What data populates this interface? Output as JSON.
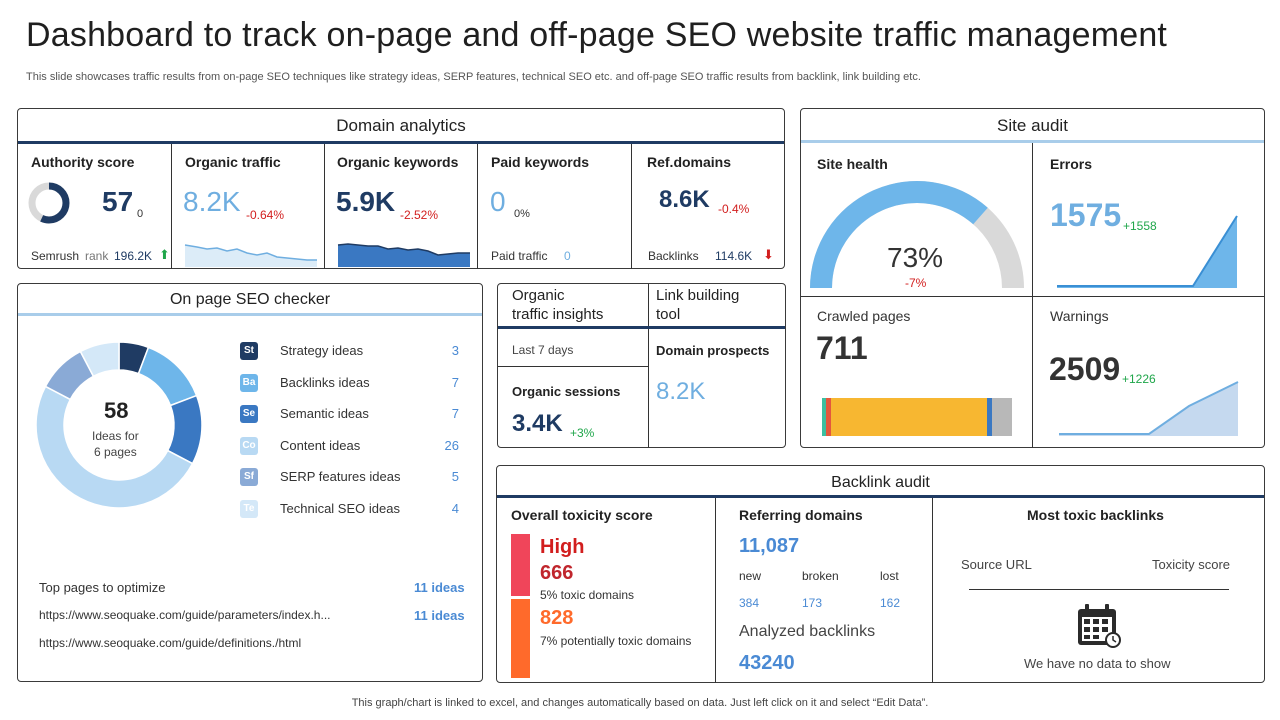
{
  "header": {
    "title": "Dashboard to track on-page and off-page SEO website traffic management",
    "subtitle": "This slide showcases traffic results from on-page SEO techniques like strategy ideas, SERP features, technical SEO etc. and off-page SEO traffic results from backlink, link building etc."
  },
  "domain_analytics": {
    "title": "Domain analytics",
    "authority": {
      "label": "Authority score",
      "value": "57",
      "delta": "0",
      "rank_label": "Semrush",
      "rank_label2": "rank",
      "rank_value": "196.2K",
      "score_fraction": 0.57
    },
    "organic_traffic": {
      "label": "Organic traffic",
      "value": "8.2K",
      "delta": "-0.64%"
    },
    "organic_keywords": {
      "label": "Organic keywords",
      "value": "5.9K",
      "delta": "-2.52%"
    },
    "paid_keywords": {
      "label": "Paid keywords",
      "value": "0",
      "delta": "0%",
      "sub_label": "Paid traffic",
      "sub_value": "0"
    },
    "ref_domains": {
      "label": "Ref.domains",
      "value": "8.6K",
      "delta": "-0.4%",
      "sub_label": "Backlinks",
      "sub_value": "114.6K"
    }
  },
  "site_audit": {
    "title": "Site audit",
    "site_health": {
      "label": "Site health",
      "value": "73%",
      "delta": "-7%",
      "fraction": 0.73
    },
    "errors": {
      "label": "Errors",
      "value": "1575",
      "delta": "+1558"
    },
    "crawled": {
      "label": "Crawled pages",
      "value": "711"
    },
    "warnings": {
      "label": "Warnings",
      "value": "2509",
      "delta": "+1226"
    }
  },
  "on_page": {
    "title": "On page SEO checker",
    "total": "58",
    "total_label1": "Ideas for",
    "total_label2": "6 pages",
    "ideas": [
      {
        "badge": "St",
        "label": "Strategy ideas",
        "value": "3",
        "color": "#1f3b63"
      },
      {
        "badge": "Ba",
        "label": "Backlinks ideas",
        "value": "7",
        "color": "#6eb6ea"
      },
      {
        "badge": "Se",
        "label": "Semantic ideas",
        "value": "7",
        "color": "#3a78c2"
      },
      {
        "badge": "Co",
        "label": "Content ideas",
        "value": "26",
        "color": "#b8d9f3"
      },
      {
        "badge": "Sf",
        "label": "SERP features ideas",
        "value": "5",
        "color": "#8aaad6"
      },
      {
        "badge": "Te",
        "label": "Technical SEO ideas",
        "value": "4",
        "color": "#d4e8f8"
      }
    ],
    "top_pages_label": "Top pages to optimize",
    "top_pages_value": "11 ideas",
    "page1_url": "https://www.seoquake.com/guide/parameters/index.h...",
    "page1_value": "11 ideas",
    "page2_url": "https://www.seoquake.com/guide/definitions./html"
  },
  "organic_insights": {
    "title_line1": "Organic",
    "title_line2": "traffic insights",
    "period": "Last 7 days",
    "sessions_label": "Organic sessions",
    "sessions_value": "3.4K",
    "sessions_delta": "+3%"
  },
  "link_building": {
    "title_line1": "Link building",
    "title_line2": "tool",
    "prospects_label": "Domain prospects",
    "prospects_value": "8.2K"
  },
  "backlink_audit": {
    "title": "Backlink audit",
    "toxicity": {
      "label": "Overall toxicity score",
      "level": "High",
      "toxic_value": "666",
      "toxic_label": "5% toxic domains",
      "potential_value": "828",
      "potential_label": "7% potentially toxic domains"
    },
    "referring": {
      "label": "Referring domains",
      "value": "11,087",
      "new_label": "new",
      "broken_label": "broken",
      "lost_label": "lost",
      "new_value": "384",
      "broken_value": "173",
      "lost_value": "162",
      "analyzed_label": "Analyzed backlinks",
      "analyzed_value": "43240"
    },
    "most_toxic": {
      "label": "Most toxic backlinks",
      "col1": "Source URL",
      "col2": "Toxicity score",
      "empty": "We have  no data to show"
    }
  },
  "footer": "This graph/chart is linked to excel,  and changes automatically based on data. Just left click on it and select “Edit Data”.",
  "colors": {
    "dark_blue": "#1f3b63",
    "light_blue": "#6faee0",
    "accent_line": "#a9cdea",
    "red": "#d21e1e",
    "green": "#1fa64a"
  }
}
